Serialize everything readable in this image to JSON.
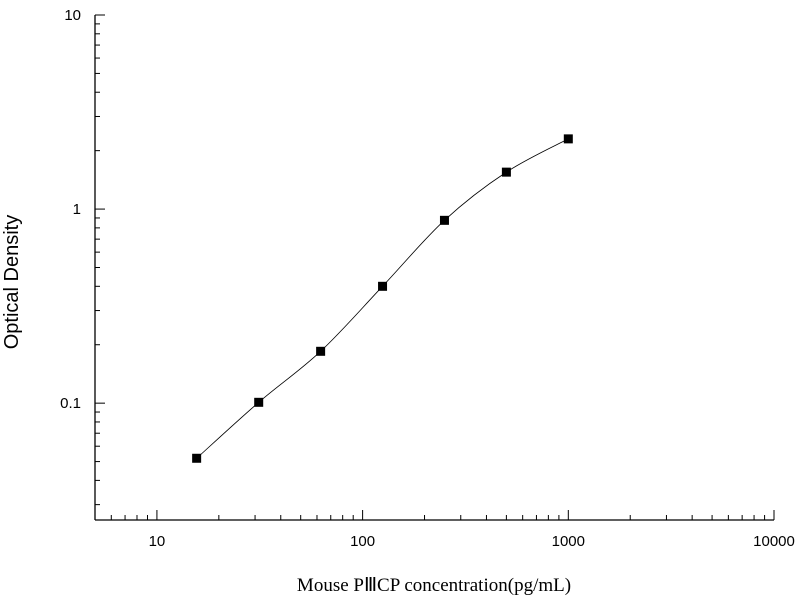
{
  "chart_data": {
    "type": "scatter",
    "xlabel": "Mouse PⅢCP concentration(pg/mL)",
    "ylabel": "Optical Density",
    "xscale": "log",
    "yscale": "log",
    "xlim": [
      5,
      10000
    ],
    "ylim": [
      0.025,
      10
    ],
    "x_tick_labels": [
      "10",
      "100",
      "1000",
      "10000"
    ],
    "y_tick_labels": [
      "0.1",
      "1",
      "10"
    ],
    "grid": false,
    "legend": "none",
    "series": [
      {
        "x": [
          15.6,
          31.25,
          62.5,
          125,
          250,
          500,
          1000
        ],
        "y": [
          0.052,
          0.101,
          0.185,
          0.4,
          0.875,
          1.55,
          2.3
        ],
        "marker": "square",
        "fit_curve": true
      }
    ]
  }
}
